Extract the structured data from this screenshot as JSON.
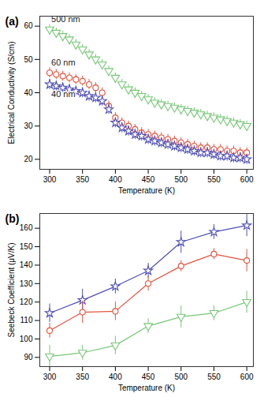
{
  "chart_data": [
    {
      "type": "scatter",
      "title": "(a)",
      "xlabel": "Temperature (K)",
      "ylabel": "Electrical Conductivity (S/cm)",
      "x": [
        300,
        310,
        320,
        330,
        340,
        350,
        360,
        370,
        380,
        390,
        400,
        410,
        420,
        430,
        440,
        450,
        460,
        470,
        480,
        490,
        500,
        510,
        520,
        530,
        540,
        550,
        560,
        570,
        580,
        590,
        600
      ],
      "xlim": [
        285,
        610
      ],
      "xticks": [
        300,
        350,
        400,
        450,
        500,
        550,
        600
      ],
      "ylim": [
        17,
        63
      ],
      "yticks": [
        20,
        30,
        40,
        50,
        60
      ],
      "series": [
        {
          "name": "500 nm",
          "color": "#77c777",
          "marker": "triangle-down",
          "values": [
            59,
            58,
            57,
            56,
            54.5,
            53,
            51.5,
            50,
            48.5,
            46.5,
            44.5,
            42.5,
            41,
            40,
            39,
            38,
            37,
            36.5,
            36,
            35.5,
            35,
            34.5,
            34,
            33.5,
            33,
            32.5,
            32,
            31.5,
            31,
            30.5,
            30
          ],
          "errors": [
            1.5,
            1.5,
            1.5,
            1.5,
            1.5,
            1.5,
            1.5,
            1.5,
            1.5,
            1.5,
            1.5,
            1.5,
            1.5,
            1.5,
            1.5,
            1.5,
            1.5,
            1.5,
            1.5,
            1.5,
            1.5,
            1.5,
            1.5,
            1.5,
            1.5,
            1.5,
            1.5,
            1.5,
            1.5,
            1.5,
            1.5
          ]
        },
        {
          "name": "60 nm",
          "color": "#e5533d",
          "marker": "circle",
          "values": [
            46,
            45.5,
            45,
            44.5,
            44,
            43.5,
            42.5,
            41.5,
            40,
            36,
            32.5,
            31,
            30,
            29,
            28,
            27.5,
            27,
            26.5,
            26,
            25.5,
            25,
            24.5,
            24,
            23.5,
            23.5,
            23,
            23,
            22.5,
            22.5,
            22,
            22
          ],
          "errors": [
            1.5,
            1.5,
            1.5,
            1.5,
            1.5,
            1.5,
            1.5,
            1.5,
            1.5,
            1.5,
            1.5,
            1.5,
            1.5,
            1.5,
            1.5,
            1.5,
            1.5,
            1.5,
            1.5,
            1.5,
            1.5,
            1.5,
            1.5,
            1.5,
            1.5,
            1.5,
            1.5,
            1.5,
            1.5,
            1.5,
            1.5
          ]
        },
        {
          "name": "40 nm",
          "color": "#4f4fb5",
          "marker": "star",
          "values": [
            42.5,
            42,
            41.5,
            41,
            40.5,
            40,
            39,
            38.5,
            37.5,
            35,
            31,
            29.5,
            28.5,
            27.5,
            27,
            26,
            25.5,
            25,
            24.5,
            24,
            23.5,
            23,
            22.5,
            22,
            22,
            21.5,
            21,
            21,
            20.5,
            20.5,
            20
          ],
          "errors": [
            1.5,
            1.5,
            1.5,
            1.5,
            1.5,
            1.5,
            1.5,
            1.5,
            1.5,
            1.5,
            1.5,
            1.5,
            1.5,
            1.5,
            1.5,
            1.5,
            1.5,
            1.5,
            1.5,
            1.5,
            1.5,
            1.5,
            1.5,
            1.5,
            1.5,
            1.5,
            1.5,
            1.5,
            1.5,
            1.5,
            1.5
          ]
        }
      ]
    },
    {
      "type": "line",
      "title": "(b)",
      "xlabel": "Temperature (K)",
      "ylabel": "Seebeck Coefficient (μV/K)",
      "x": [
        300,
        350,
        400,
        450,
        500,
        550,
        600
      ],
      "xlim": [
        285,
        610
      ],
      "xticks": [
        300,
        350,
        400,
        450,
        500,
        550,
        600
      ],
      "ylim": [
        85,
        168
      ],
      "yticks": [
        90,
        100,
        110,
        120,
        130,
        140,
        150,
        160
      ],
      "series": [
        {
          "color": "#4f4fb5",
          "marker": "star",
          "values": [
            114,
            121,
            128.5,
            137,
            152.5,
            158,
            161.5
          ],
          "errors": [
            5,
            6,
            4,
            4,
            6,
            4,
            6
          ]
        },
        {
          "color": "#e5533d",
          "marker": "circle",
          "values": [
            104.5,
            114.5,
            115,
            130,
            139.5,
            146,
            142.5
          ],
          "errors": [
            4,
            6,
            5,
            4,
            3,
            3,
            6
          ]
        },
        {
          "color": "#77c777",
          "marker": "triangle-down",
          "values": [
            90.5,
            92.5,
            96.5,
            107,
            112,
            114,
            120
          ],
          "errors": [
            6,
            4,
            5,
            4,
            6,
            4,
            6
          ]
        }
      ]
    }
  ]
}
